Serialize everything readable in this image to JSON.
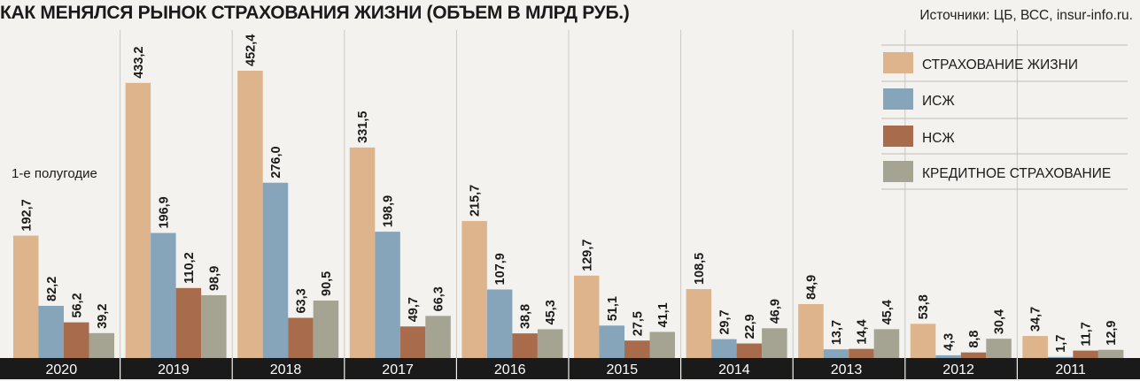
{
  "header": {
    "title": "КАК МЕНЯЛСЯ РЫНОК СТРАХОВАНИЯ ЖИЗНИ (ОБЪЕМ В МЛРД РУБ.)",
    "source": "Источники: ЦБ, ВСС, insur-info.ru."
  },
  "note": "1-е полугодие",
  "colors": {
    "life": "#ddb48c",
    "isj": "#87a5ba",
    "nsj": "#a86c4c",
    "credit": "#a5a493",
    "axis_band": "#1a1a1a",
    "background": "#f3f2ee"
  },
  "chart_data": {
    "type": "bar",
    "title": "КАК МЕНЯЛСЯ РЫНОК СТРАХОВАНИЯ ЖИЗНИ (ОБЪЕМ В МЛРД РУБ.)",
    "categories": [
      "2020",
      "2019",
      "2018",
      "2017",
      "2016",
      "2015",
      "2014",
      "2013",
      "2012",
      "2011"
    ],
    "ylim": [
      0,
      470
    ],
    "grid": false,
    "legend_position": "top-right",
    "annotations": [
      {
        "category": "2020",
        "text": "1-е полугодие"
      }
    ],
    "series": [
      {
        "name": "СТРАХОВАНИЕ ЖИЗНИ",
        "labels": [
          "192,7",
          "433,2",
          "452,4",
          "331,5",
          "215,7",
          "129,7",
          "108,5",
          "84,9",
          "53,8",
          "34,7"
        ],
        "values": [
          192.7,
          433.2,
          452.4,
          331.5,
          215.7,
          129.7,
          108.5,
          84.9,
          53.8,
          34.7
        ]
      },
      {
        "name": "ИСЖ",
        "labels": [
          "82,2",
          "196,9",
          "276,0",
          "198,9",
          "107,9",
          "51,1",
          "29,7",
          "13,7",
          "4,3",
          "1,7"
        ],
        "values": [
          82.2,
          196.9,
          276.0,
          198.9,
          107.9,
          51.1,
          29.7,
          13.7,
          4.3,
          1.7
        ]
      },
      {
        "name": "НСЖ",
        "labels": [
          "56,2",
          "110,2",
          "63,3",
          "49,7",
          "38,8",
          "27,5",
          "22,9",
          "14,4",
          "8,8",
          "11,7"
        ],
        "values": [
          56.2,
          110.2,
          63.3,
          49.7,
          38.8,
          27.5,
          22.9,
          14.4,
          8.8,
          11.7
        ]
      },
      {
        "name": "КРЕДИТНОЕ СТРАХОВАНИЕ",
        "labels": [
          "39,2",
          "98,9",
          "90,5",
          "66,3",
          "45,3",
          "41,1",
          "46,9",
          "45,4",
          "30,4",
          "12,9"
        ],
        "values": [
          39.2,
          98.9,
          90.5,
          66.3,
          45.3,
          41.1,
          46.9,
          45.4,
          30.4,
          12.9
        ]
      }
    ]
  }
}
